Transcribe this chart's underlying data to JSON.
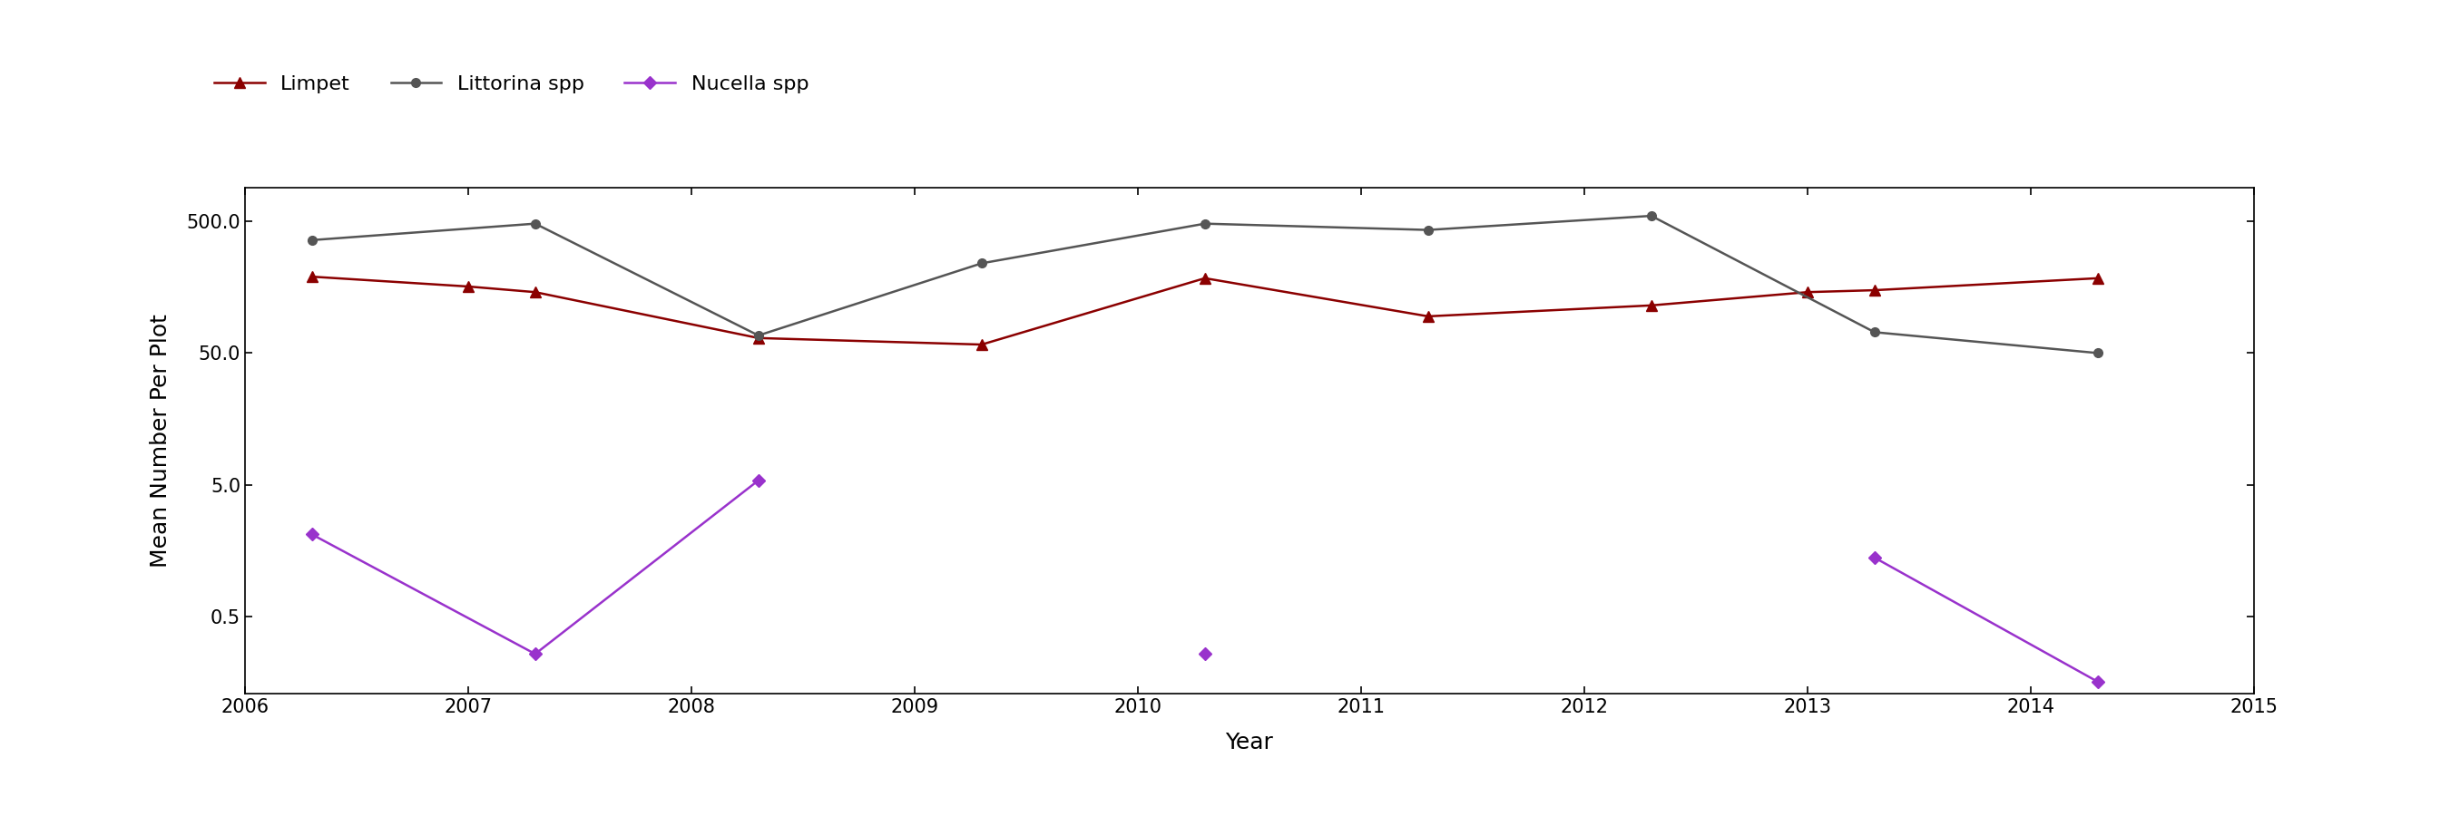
{
  "xlabel": "Year",
  "ylabel": "Mean Number Per Plot",
  "xlim": [
    2006,
    2015
  ],
  "ylim_log": [
    0.13,
    900
  ],
  "yticks": [
    0.5,
    5.0,
    50.0,
    500.0
  ],
  "ytick_labels": [
    "0.5",
    "5.0",
    "50.0",
    "500.0"
  ],
  "limpet": {
    "name": "Limpet",
    "color": "#8B0000",
    "marker": "^",
    "markersize": 9,
    "linewidth": 1.8,
    "x": [
      2006.3,
      2007.0,
      2007.3,
      2008.3,
      2009.3,
      2010.3,
      2011.3,
      2012.3,
      2013.0,
      2013.3,
      2014.3
    ],
    "y": [
      190,
      160,
      145,
      65,
      58,
      185,
      95,
      115,
      145,
      150,
      185
    ]
  },
  "littorina": {
    "name": "Littorina spp",
    "color": "#555555",
    "marker": "o",
    "markersize": 7,
    "linewidth": 1.8,
    "x": [
      2006.3,
      2007.3,
      2008.3,
      2009.3,
      2010.3,
      2011.3,
      2012.3,
      2013.3,
      2014.3
    ],
    "y": [
      360,
      480,
      68,
      240,
      480,
      430,
      550,
      72,
      50
    ]
  },
  "nucella_segments": [
    {
      "x": [
        2006.3,
        2007.3,
        2008.3
      ],
      "y": [
        2.1,
        0.26,
        5.4
      ]
    },
    {
      "x": [
        2010.3
      ],
      "y": [
        0.26
      ]
    },
    {
      "x": [
        2013.3,
        2014.3
      ],
      "y": [
        1.4,
        0.16
      ]
    }
  ],
  "nucella_color": "#9932CC",
  "nucella_marker": "D",
  "nucella_markersize": 7,
  "nucella_linewidth": 1.8,
  "nucella_name": "Nucella spp",
  "background_color": "#ffffff",
  "axis_fontsize": 18,
  "tick_fontsize": 15,
  "legend_fontsize": 16
}
